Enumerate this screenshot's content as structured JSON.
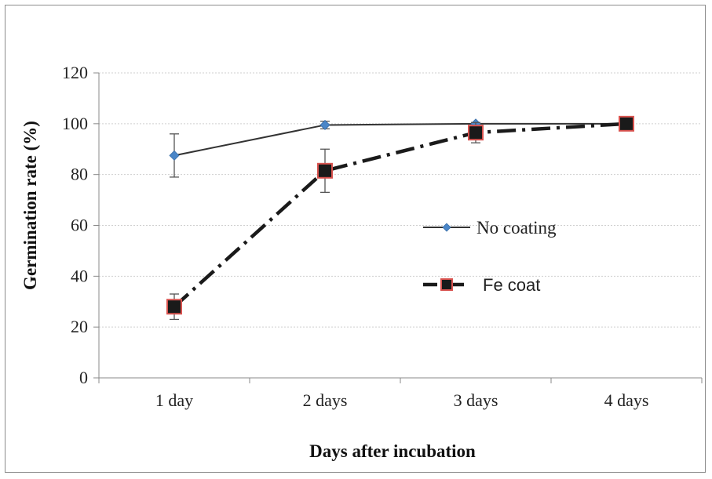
{
  "chart_data": {
    "type": "line",
    "xlabel": "Days after incubation",
    "ylabel": "Germination rate (%)",
    "categories": [
      "1 day",
      "2 days",
      "3 days",
      "4 days"
    ],
    "ylim": [
      0,
      120
    ],
    "yticks": [
      0,
      20,
      40,
      60,
      80,
      100,
      120
    ],
    "grid": true,
    "legend_position": "center-right",
    "series": [
      {
        "name": "No coating",
        "values": [
          87.5,
          99.5,
          100,
          100
        ],
        "error": [
          8.5,
          1.5,
          0,
          0
        ],
        "color": "#4a86c8",
        "line_color": "#333333",
        "line_style": "solid",
        "marker": "diamond"
      },
      {
        "name": "Fe coat",
        "values": [
          28,
          81.5,
          96.5,
          100
        ],
        "error": [
          5,
          8.5,
          4,
          0.5
        ],
        "color": "#1a1a1a",
        "marker_edge": "#d9534f",
        "line_style": "dashdot",
        "marker": "square"
      }
    ]
  }
}
